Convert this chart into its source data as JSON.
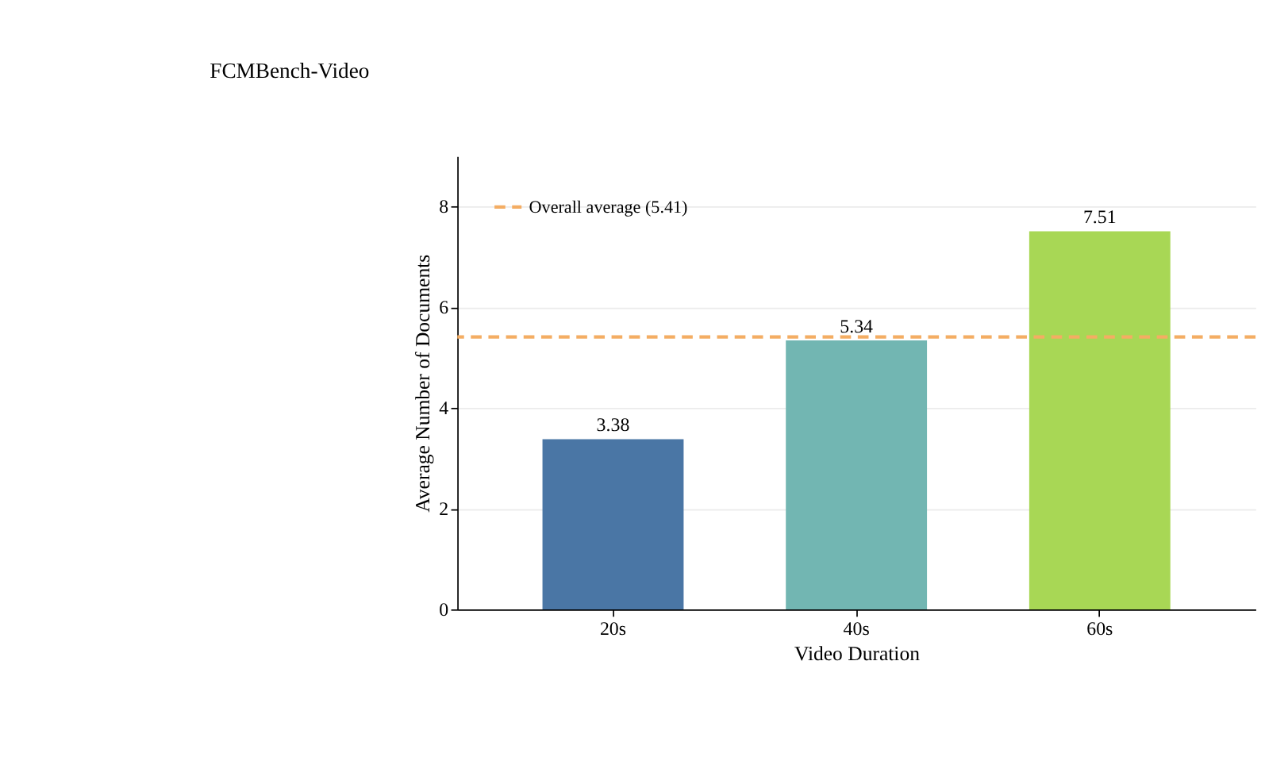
{
  "chart_data": {
    "type": "bar",
    "title": "FCMBench-Video",
    "xlabel": "Video Duration",
    "ylabel": "Average Number of Documents",
    "categories": [
      "20s",
      "40s",
      "60s"
    ],
    "values": [
      3.38,
      5.34,
      7.51
    ],
    "colors": [
      "#4a76a5",
      "#72b6b2",
      "#a8d755"
    ],
    "data_labels": true,
    "ylim": [
      0,
      9
    ],
    "yticks": [
      0,
      2,
      4,
      6,
      8
    ],
    "grid": "y",
    "ref_lines": [
      {
        "axis": "y",
        "value": 5.41,
        "label": "Overall average (5.41)",
        "color": "#f4ad63",
        "line_style": "dashed"
      }
    ],
    "legend": "top left"
  }
}
